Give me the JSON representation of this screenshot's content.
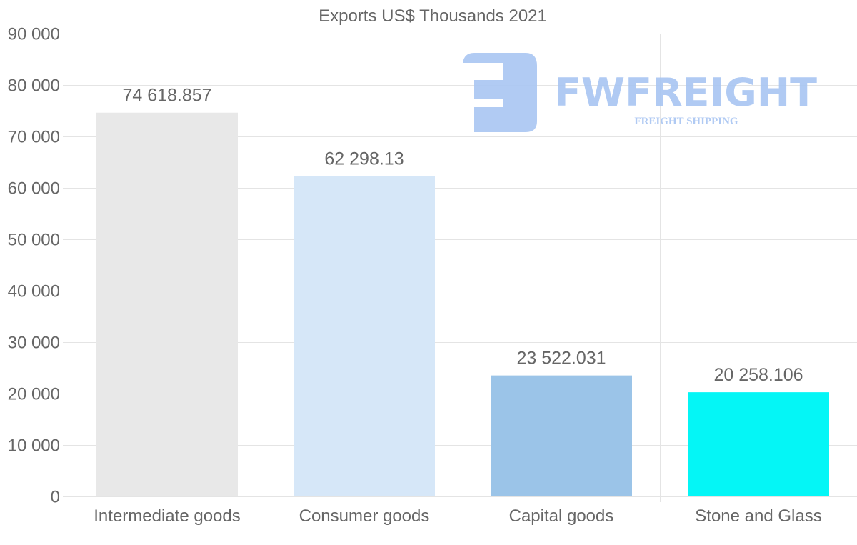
{
  "chart_data": {
    "type": "bar",
    "title": "Exports US$ Thousands 2021",
    "xlabel": "",
    "ylabel": "",
    "categories": [
      "Intermediate goods",
      "Consumer goods",
      "Capital goods",
      "Stone and Glass"
    ],
    "values": [
      74618.857,
      62298.13,
      23522.031,
      20258.106
    ],
    "value_labels": [
      "74 618.857",
      "62 298.13",
      "23 522.031",
      "20 258.106"
    ],
    "colors": [
      "#e8e8e8",
      "#d6e7f8",
      "#9bc4e8",
      "#04f6f6"
    ],
    "ylim": [
      0,
      90000
    ],
    "yticks": [
      0,
      10000,
      20000,
      30000,
      40000,
      50000,
      60000,
      70000,
      80000,
      90000
    ],
    "ytick_labels": [
      "0",
      "10 000",
      "20 000",
      "30 000",
      "40 000",
      "50 000",
      "60 000",
      "70 000",
      "80 000",
      "90 000"
    ],
    "grid": true,
    "legend": "none"
  },
  "watermark": {
    "brand": "FWFREIGHT",
    "tagline": "FREIGHT SHIPPING",
    "color": "#a8c5f2"
  }
}
